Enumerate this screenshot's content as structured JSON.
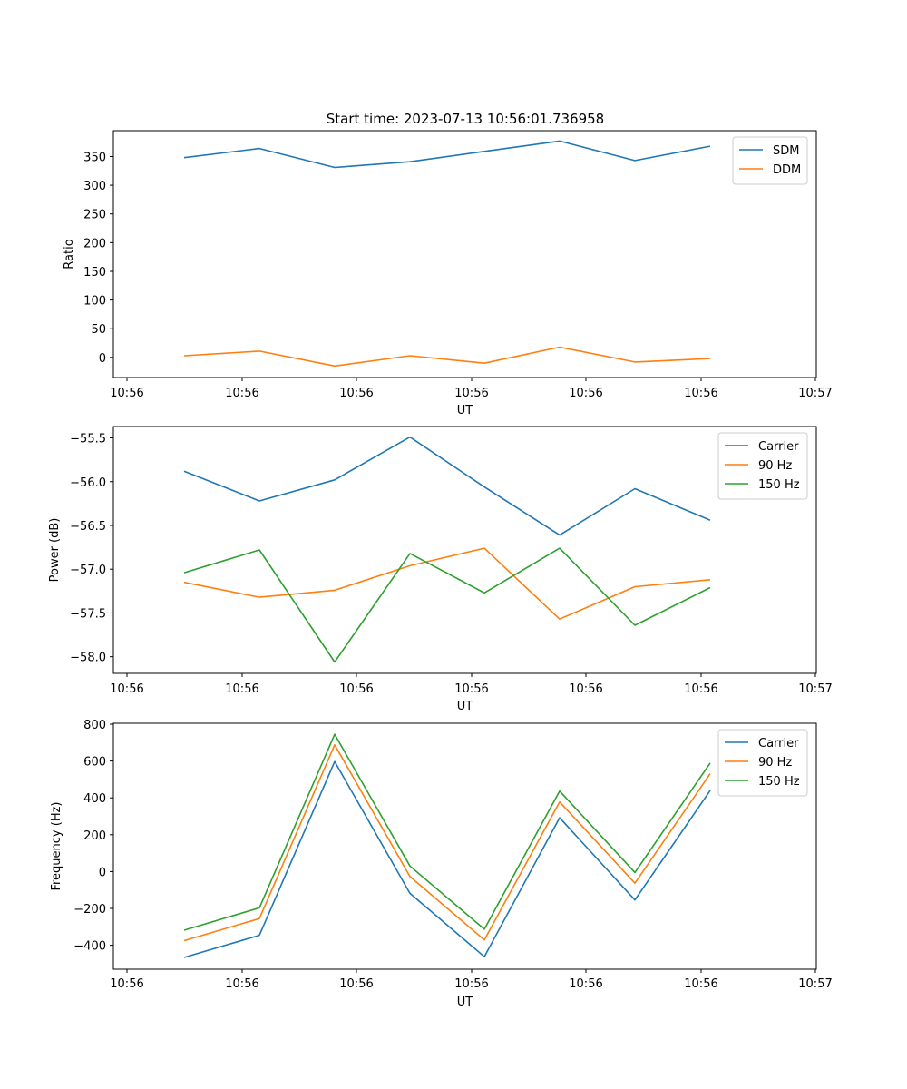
{
  "figure_title": "Start time: 2023-07-13 10:56:01.736958",
  "chart_data": [
    {
      "type": "line",
      "title": "Start time: 2023-07-13 10:56:01.736958",
      "xlabel": "UT",
      "ylabel": "Ratio",
      "x_tick_labels": [
        "10:56",
        "10:56",
        "10:56",
        "10:56",
        "10:56",
        "10:56",
        "10:56",
        "10:57"
      ],
      "y_ticks": [
        0,
        50,
        100,
        150,
        200,
        250,
        300,
        350
      ],
      "ylim": [
        -35,
        395
      ],
      "legend_position": "top-right",
      "series": [
        {
          "name": "SDM",
          "color": "#1f77b4",
          "values": [
            348,
            364,
            331,
            341,
            359,
            377,
            343,
            368
          ]
        },
        {
          "name": "DDM",
          "color": "#ff7f0e",
          "values": [
            3,
            11,
            -15,
            3,
            -10,
            18,
            -8,
            -2
          ]
        }
      ]
    },
    {
      "type": "line",
      "title": "",
      "xlabel": "UT",
      "ylabel": "Power (dB)",
      "x_tick_labels": [
        "10:56",
        "10:56",
        "10:56",
        "10:56",
        "10:56",
        "10:56",
        "10:56",
        "10:57"
      ],
      "y_ticks": [
        -58.0,
        -57.5,
        -57.0,
        -56.5,
        -56.0,
        -55.5
      ],
      "y_tick_labels": [
        "−58.0",
        "−57.5",
        "−57.0",
        "−56.5",
        "−56.0",
        "−55.5"
      ],
      "ylim": [
        -58.19,
        -55.37
      ],
      "legend_position": "top-right",
      "series": [
        {
          "name": "Carrier",
          "color": "#1f77b4",
          "values": [
            -55.88,
            -56.22,
            -55.98,
            -55.49,
            -56.06,
            -56.61,
            -56.08,
            -56.44
          ]
        },
        {
          "name": "90 Hz",
          "color": "#ff7f0e",
          "values": [
            -57.15,
            -57.32,
            -57.24,
            -56.96,
            -56.76,
            -57.57,
            -57.2,
            -57.12
          ]
        },
        {
          "name": "150 Hz",
          "color": "#2ca02c",
          "values": [
            -57.04,
            -56.78,
            -58.06,
            -56.82,
            -57.27,
            -56.76,
            -57.64,
            -57.21
          ]
        }
      ]
    },
    {
      "type": "line",
      "title": "",
      "xlabel": "UT",
      "ylabel": "Frequency (Hz)",
      "x_tick_labels": [
        "10:56",
        "10:56",
        "10:56",
        "10:56",
        "10:56",
        "10:56",
        "10:56",
        "10:57"
      ],
      "y_ticks": [
        -400,
        -200,
        0,
        200,
        400,
        600,
        800
      ],
      "y_tick_labels": [
        "−400",
        "−200",
        "0",
        "200",
        "400",
        "600",
        "800"
      ],
      "ylim": [
        -530,
        805
      ],
      "legend_position": "top-right",
      "series": [
        {
          "name": "Carrier",
          "color": "#1f77b4",
          "values": [
            -466,
            -346,
            597,
            -118,
            -462,
            292,
            -154,
            440
          ]
        },
        {
          "name": "90 Hz",
          "color": "#ff7f0e",
          "values": [
            -375,
            -255,
            688,
            -27,
            -371,
            378,
            -63,
            531
          ]
        },
        {
          "name": "150 Hz",
          "color": "#2ca02c",
          "values": [
            -318,
            -197,
            745,
            30,
            -313,
            437,
            -5,
            589
          ]
        }
      ]
    }
  ]
}
